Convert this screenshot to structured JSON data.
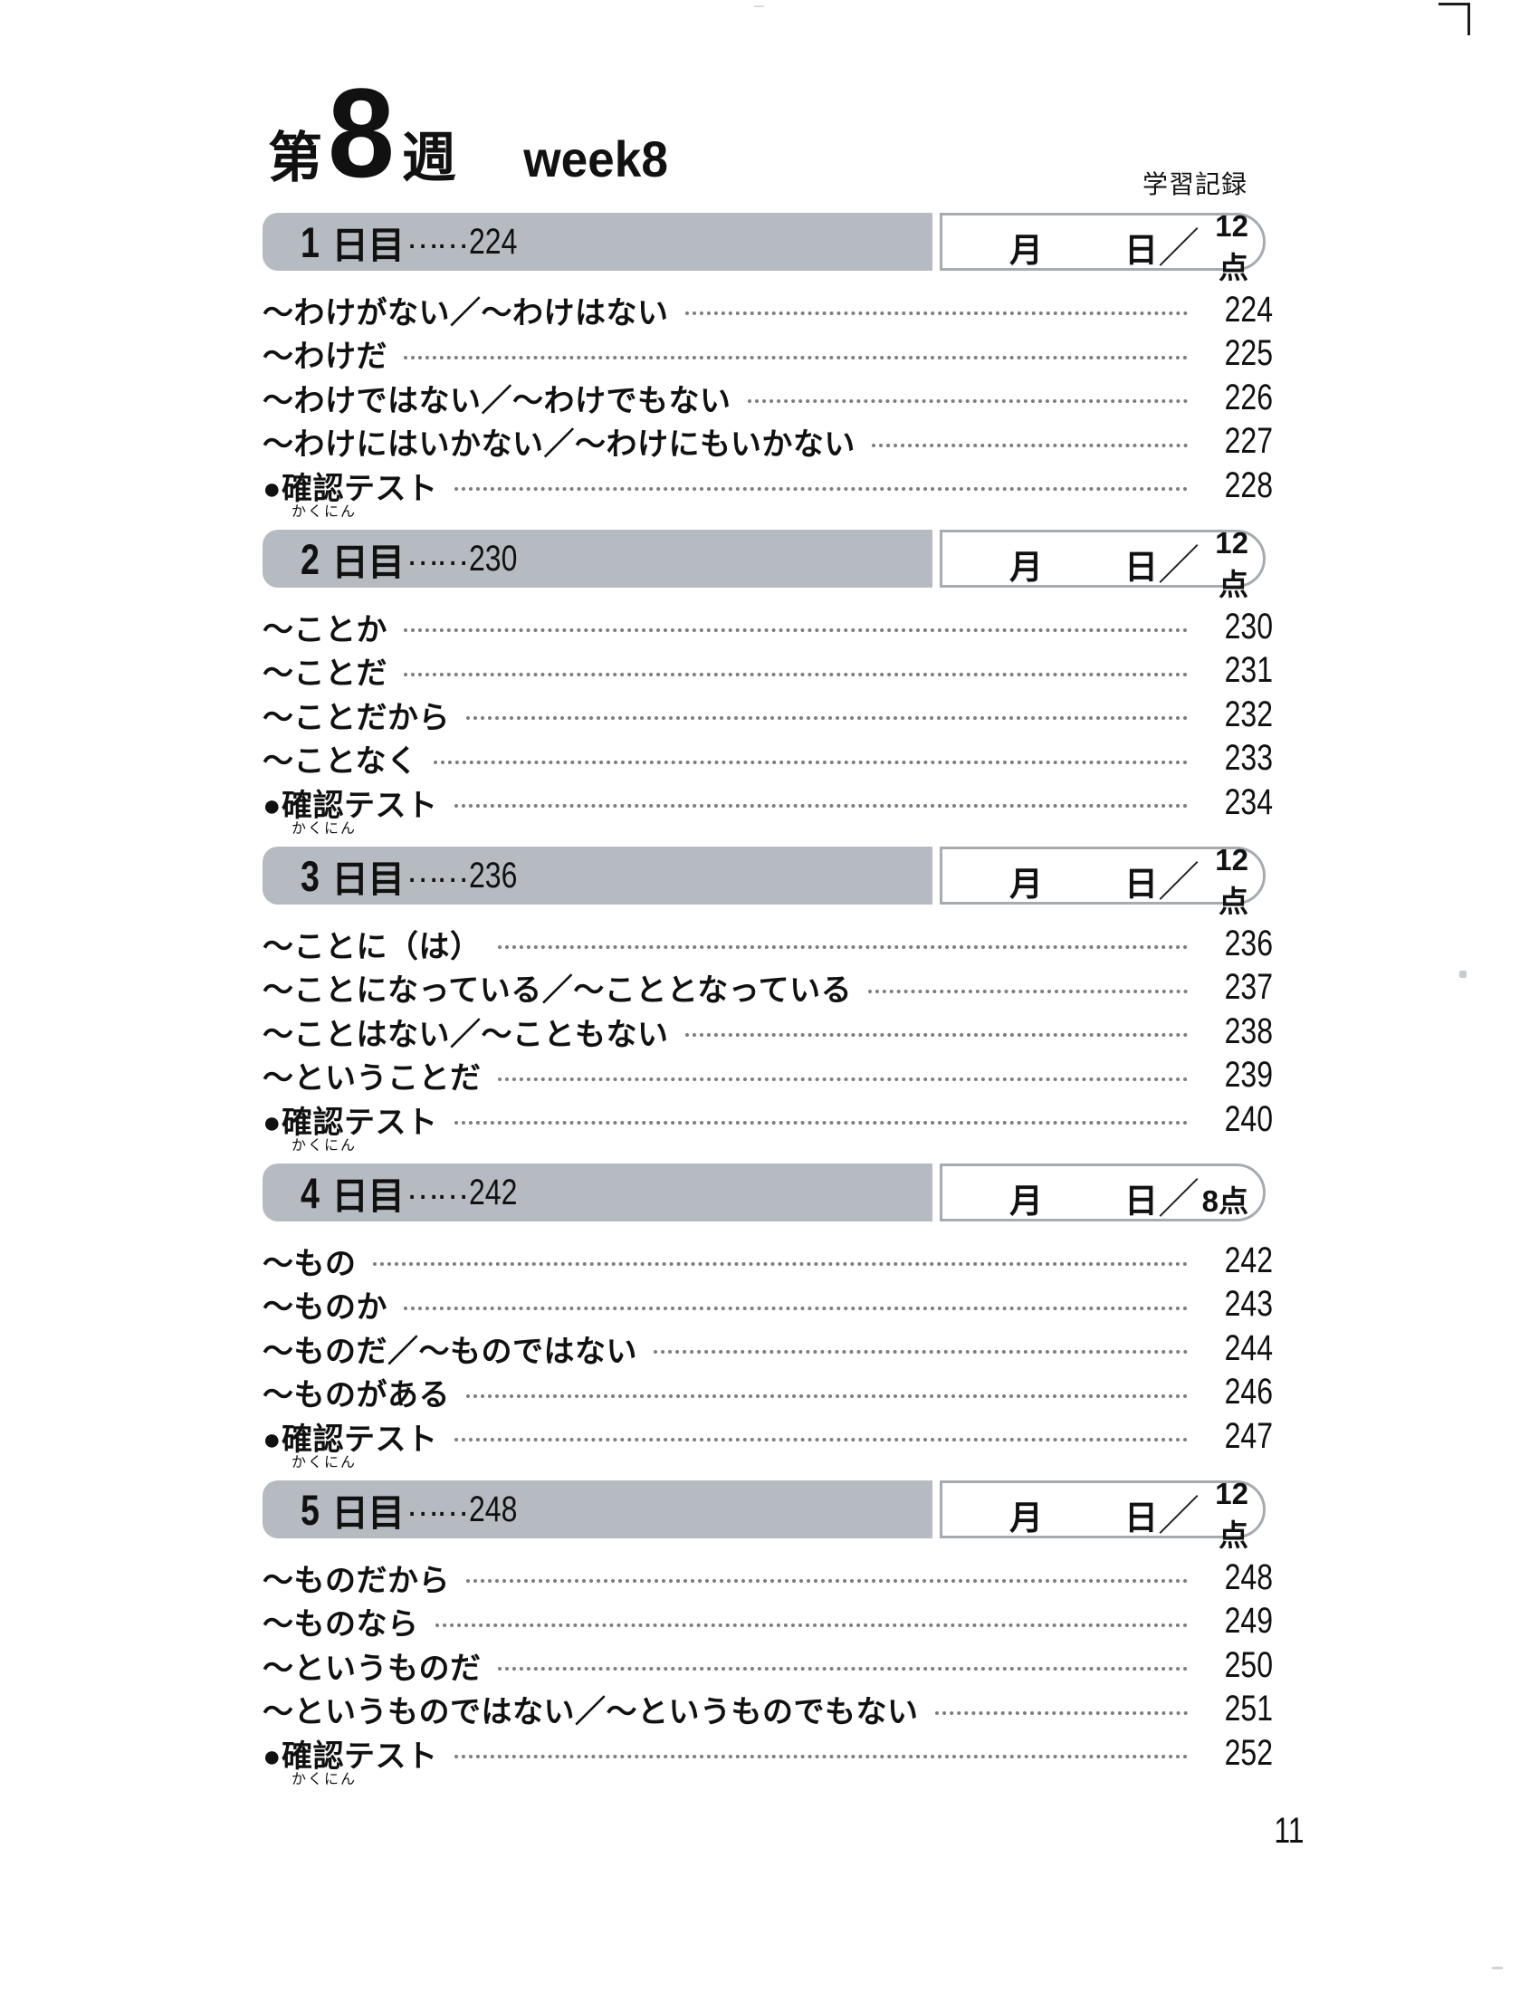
{
  "page": {
    "week_prefix": "第",
    "week_number": "8",
    "week_suffix": "週",
    "week_en": "week8",
    "record_label": "学習記録",
    "folio": "11"
  },
  "labels": {
    "day_suffix": "日目",
    "leader": "……",
    "month": "月",
    "day": "日",
    "slash": "／"
  },
  "colors": {
    "bar_gray": "#b6bbc1",
    "box_border": "#a6abb0",
    "dot_gray": "#7d7d7d",
    "text": "#111111"
  },
  "sections": [
    {
      "day": "1",
      "start_page": "224",
      "score": "12点",
      "items": [
        {
          "term": "～わけがない／～わけはない",
          "page": "224"
        },
        {
          "term": "～わけだ",
          "page": "225"
        },
        {
          "term": "～わけではない／～わけでもない",
          "page": "226"
        },
        {
          "term": "～わけにはいかない／～わけにもいかない",
          "page": "227"
        },
        {
          "term": "●確認テスト",
          "furigana": "かくにん",
          "page": "228"
        }
      ]
    },
    {
      "day": "2",
      "start_page": "230",
      "score": "12点",
      "items": [
        {
          "term": "～ことか",
          "page": "230"
        },
        {
          "term": "～ことだ",
          "page": "231"
        },
        {
          "term": "～ことだから",
          "page": "232"
        },
        {
          "term": "～ことなく",
          "page": "233"
        },
        {
          "term": "●確認テスト",
          "furigana": "かくにん",
          "page": "234"
        }
      ]
    },
    {
      "day": "3",
      "start_page": "236",
      "score": "12点",
      "items": [
        {
          "term": "～ことに（は）",
          "page": "236"
        },
        {
          "term": "～ことになっている／～こととなっている",
          "page": "237"
        },
        {
          "term": "～ことはない／～こともない",
          "page": "238"
        },
        {
          "term": "～ということだ",
          "page": "239"
        },
        {
          "term": "●確認テスト",
          "furigana": "かくにん",
          "page": "240"
        }
      ]
    },
    {
      "day": "4",
      "start_page": "242",
      "score": "8点",
      "items": [
        {
          "term": "～もの",
          "page": "242"
        },
        {
          "term": "～ものか",
          "page": "243"
        },
        {
          "term": "～ものだ／～ものではない",
          "page": "244"
        },
        {
          "term": "～ものがある",
          "page": "246"
        },
        {
          "term": "●確認テスト",
          "furigana": "かくにん",
          "page": "247"
        }
      ]
    },
    {
      "day": "5",
      "start_page": "248",
      "score": "12点",
      "items": [
        {
          "term": "～ものだから",
          "page": "248"
        },
        {
          "term": "～ものなら",
          "page": "249"
        },
        {
          "term": "～というものだ",
          "page": "250"
        },
        {
          "term": "～というものではない／～というものでもない",
          "page": "251"
        },
        {
          "term": "●確認テスト",
          "furigana": "かくにん",
          "page": "252"
        }
      ]
    }
  ]
}
